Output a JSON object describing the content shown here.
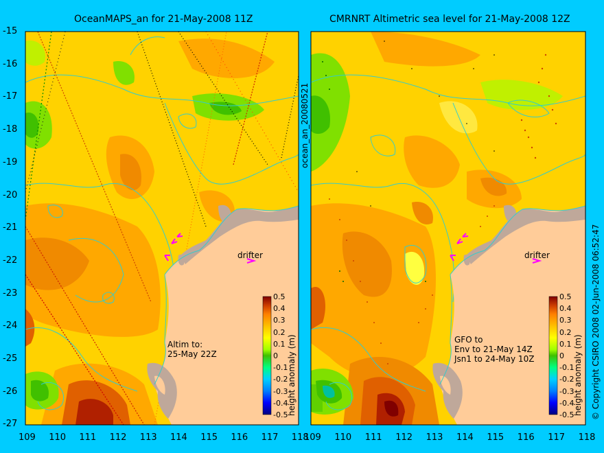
{
  "panels": [
    {
      "title": "OceanMAPS_an for 21-May-2008 11Z",
      "annotation_lines": [
        "Altim to:",
        "25-May 22Z"
      ],
      "drifter_label": "drifter"
    },
    {
      "title": "CMRNRT Altimetric sea level  for 21-May-2008 12Z",
      "annotation_lines": [
        "GFO to",
        "Env to 21-May 14Z",
        "Jsn1 to 24-May 10Z"
      ],
      "drifter_label": "drifter"
    }
  ],
  "middle_label": "ocean_an_20080521",
  "right_label": "© Copyright CSIRO 2008  02-Jun-2008 06:52:47",
  "lat_labels": [
    "-15",
    "-16",
    "-17",
    "-18",
    "-19",
    "-20",
    "-21",
    "-22",
    "-23",
    "-24",
    "-25",
    "-26",
    "-27"
  ],
  "lon_labels": [
    "109",
    "110",
    "111",
    "112",
    "113",
    "114",
    "115",
    "116",
    "117",
    "118"
  ],
  "colorbar": {
    "label": "height anomaly (m)",
    "ticks": [
      "0.5",
      "0.4",
      "0.3",
      "0.2",
      "0.1",
      "0",
      "-0.1",
      "-0.2",
      "-0.3",
      "-0.4",
      "-0.5"
    ],
    "colors": [
      "#000080",
      "#0000ff",
      "#0080ff",
      "#00c0ff",
      "#00ff80",
      "#40c000",
      "#80ff00",
      "#ffff00",
      "#ffc000",
      "#ff8000",
      "#e05000",
      "#c02000",
      "#800000"
    ]
  },
  "map_colors": {
    "land": "#ffcc99",
    "coast_shelf": "#bfa89a",
    "contour": "#33cccc",
    "drifter": "#ff00ff"
  }
}
